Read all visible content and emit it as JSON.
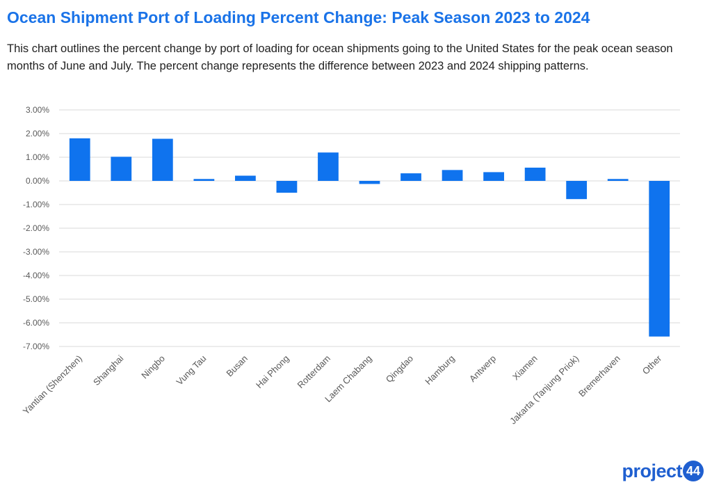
{
  "header": {
    "title": "Ocean Shipment Port of Loading Percent Change: Peak Season 2023 to 2024",
    "subtitle": "This chart outlines the percent change by port of loading for ocean shipments going to the United States for the peak ocean season months of June and July. The percent change represents the difference between 2023 and 2024 shipping patterns."
  },
  "logo": {
    "text": "project",
    "badge": "44"
  },
  "colors": {
    "title": "#1a73e8",
    "bar": "#0f73ee",
    "grid": "#d9d9d9",
    "tick": "#595959",
    "logo": "#1f5fd0"
  },
  "chart_data": {
    "type": "bar",
    "title": "",
    "xlabel": "",
    "ylabel": "",
    "categories": [
      "Yantian (Shenzhen)",
      "Shanghai",
      "Ningbo",
      "Vung Tau",
      "Busan",
      "Hai Phong",
      "Rotterdam",
      "Laem Chabang",
      "Qingdao",
      "Hamburg",
      "Antwerp",
      "Xiamen",
      "Jakarta (Tanjung Priok)",
      "Bremerhaven",
      "Other"
    ],
    "values": [
      1.8,
      1.02,
      1.78,
      0.08,
      0.22,
      -0.5,
      1.2,
      -0.13,
      0.32,
      0.46,
      0.37,
      0.56,
      -0.77,
      0.08,
      -6.58
    ],
    "ylim": [
      -7,
      3
    ],
    "yticks": [
      3,
      2,
      1,
      0,
      -1,
      -2,
      -3,
      -4,
      -5,
      -6,
      -7
    ],
    "ytick_labels": [
      "3.00%",
      "2.00%",
      "1.00%",
      "0.00%",
      "-1.00%",
      "-2.00%",
      "-3.00%",
      "-4.00%",
      "-5.00%",
      "-6.00%",
      "-7.00%"
    ],
    "grid": true,
    "legend": "none"
  }
}
